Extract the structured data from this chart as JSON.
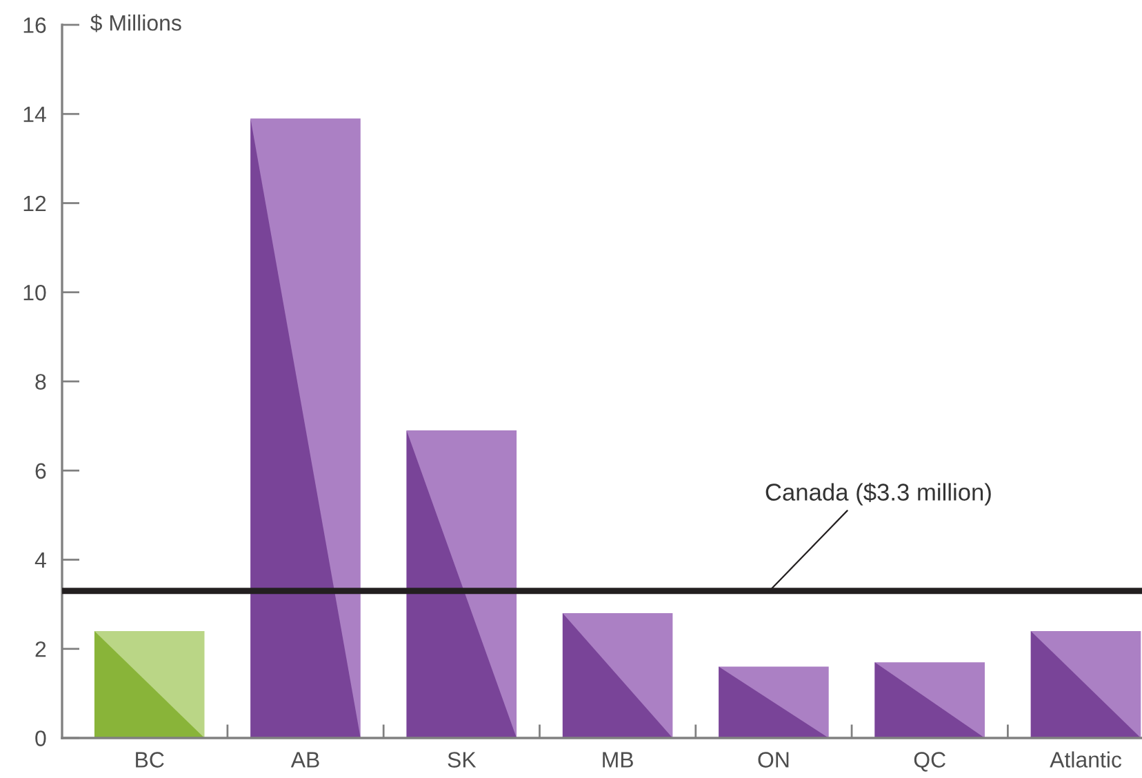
{
  "chart_data": {
    "type": "bar",
    "ylabel": "$ Millions",
    "categories": [
      "BC",
      "AB",
      "SK",
      "MB",
      "ON",
      "QC",
      "Atlantic"
    ],
    "values": [
      2.4,
      13.9,
      6.9,
      2.8,
      1.6,
      1.7,
      2.4
    ],
    "colors": [
      "#bad686",
      "#ab80c4",
      "#ab80c4",
      "#ab80c4",
      "#ab80c4",
      "#ab80c4",
      "#ab80c4"
    ],
    "ylim": [
      0,
      16
    ],
    "yticks": [
      0,
      2,
      4,
      6,
      8,
      10,
      12,
      14,
      16
    ],
    "ref_lines": [
      {
        "axis": "y",
        "value": 3.3,
        "label": "Canada ($3.3 million)",
        "color": "#231f20",
        "line_style": "solid"
      }
    ]
  }
}
